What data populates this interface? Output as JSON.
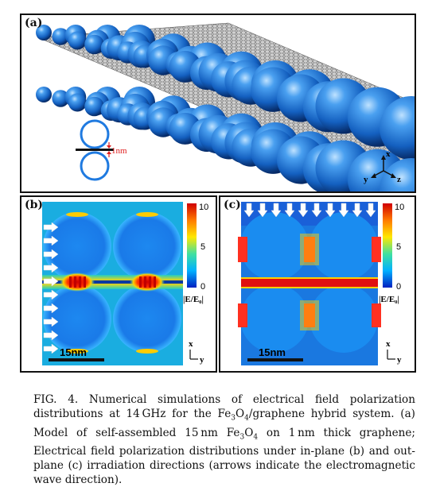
{
  "figure": {
    "panel_a": {
      "label": "(a)",
      "annotation": "1nm",
      "axes": {
        "x": "x",
        "y": "y",
        "z": "z"
      }
    },
    "panel_b": {
      "label": "(b)",
      "colorbar": {
        "ticks": [
          "10",
          "5",
          "0"
        ],
        "label": "|E/E₀|"
      },
      "scalebar": "15nm",
      "axes": {
        "x": "x",
        "y": "y"
      }
    },
    "panel_c": {
      "label": "(c)",
      "colorbar": {
        "ticks": [
          "10",
          "5",
          "0"
        ],
        "label": "|E/E₀|"
      },
      "scalebar": "15nm",
      "axes": {
        "x": "x",
        "y": "y"
      }
    },
    "caption": {
      "part1": "FIG. 4. Numerical simulations of electrical field polarization distributions at 14 GHz for the Fe",
      "sub1": "3",
      "part2": "O",
      "sub2": "4",
      "part3": "/graphene hybrid system. (a) Model of self-assembled 15 nm Fe",
      "sub3": "3",
      "part4": "O",
      "sub4": "4",
      "part5": " on 1 nm thick graphene; Electrical field polarization distributions under in-plane (b) and out-plane (c) irradiation directions (arrows indicate the electromagnetic wave direction)."
    },
    "colors": {
      "sphere": "#1e6fd0",
      "field_low": "#0a5cd8",
      "field_high": "#e01010"
    }
  }
}
